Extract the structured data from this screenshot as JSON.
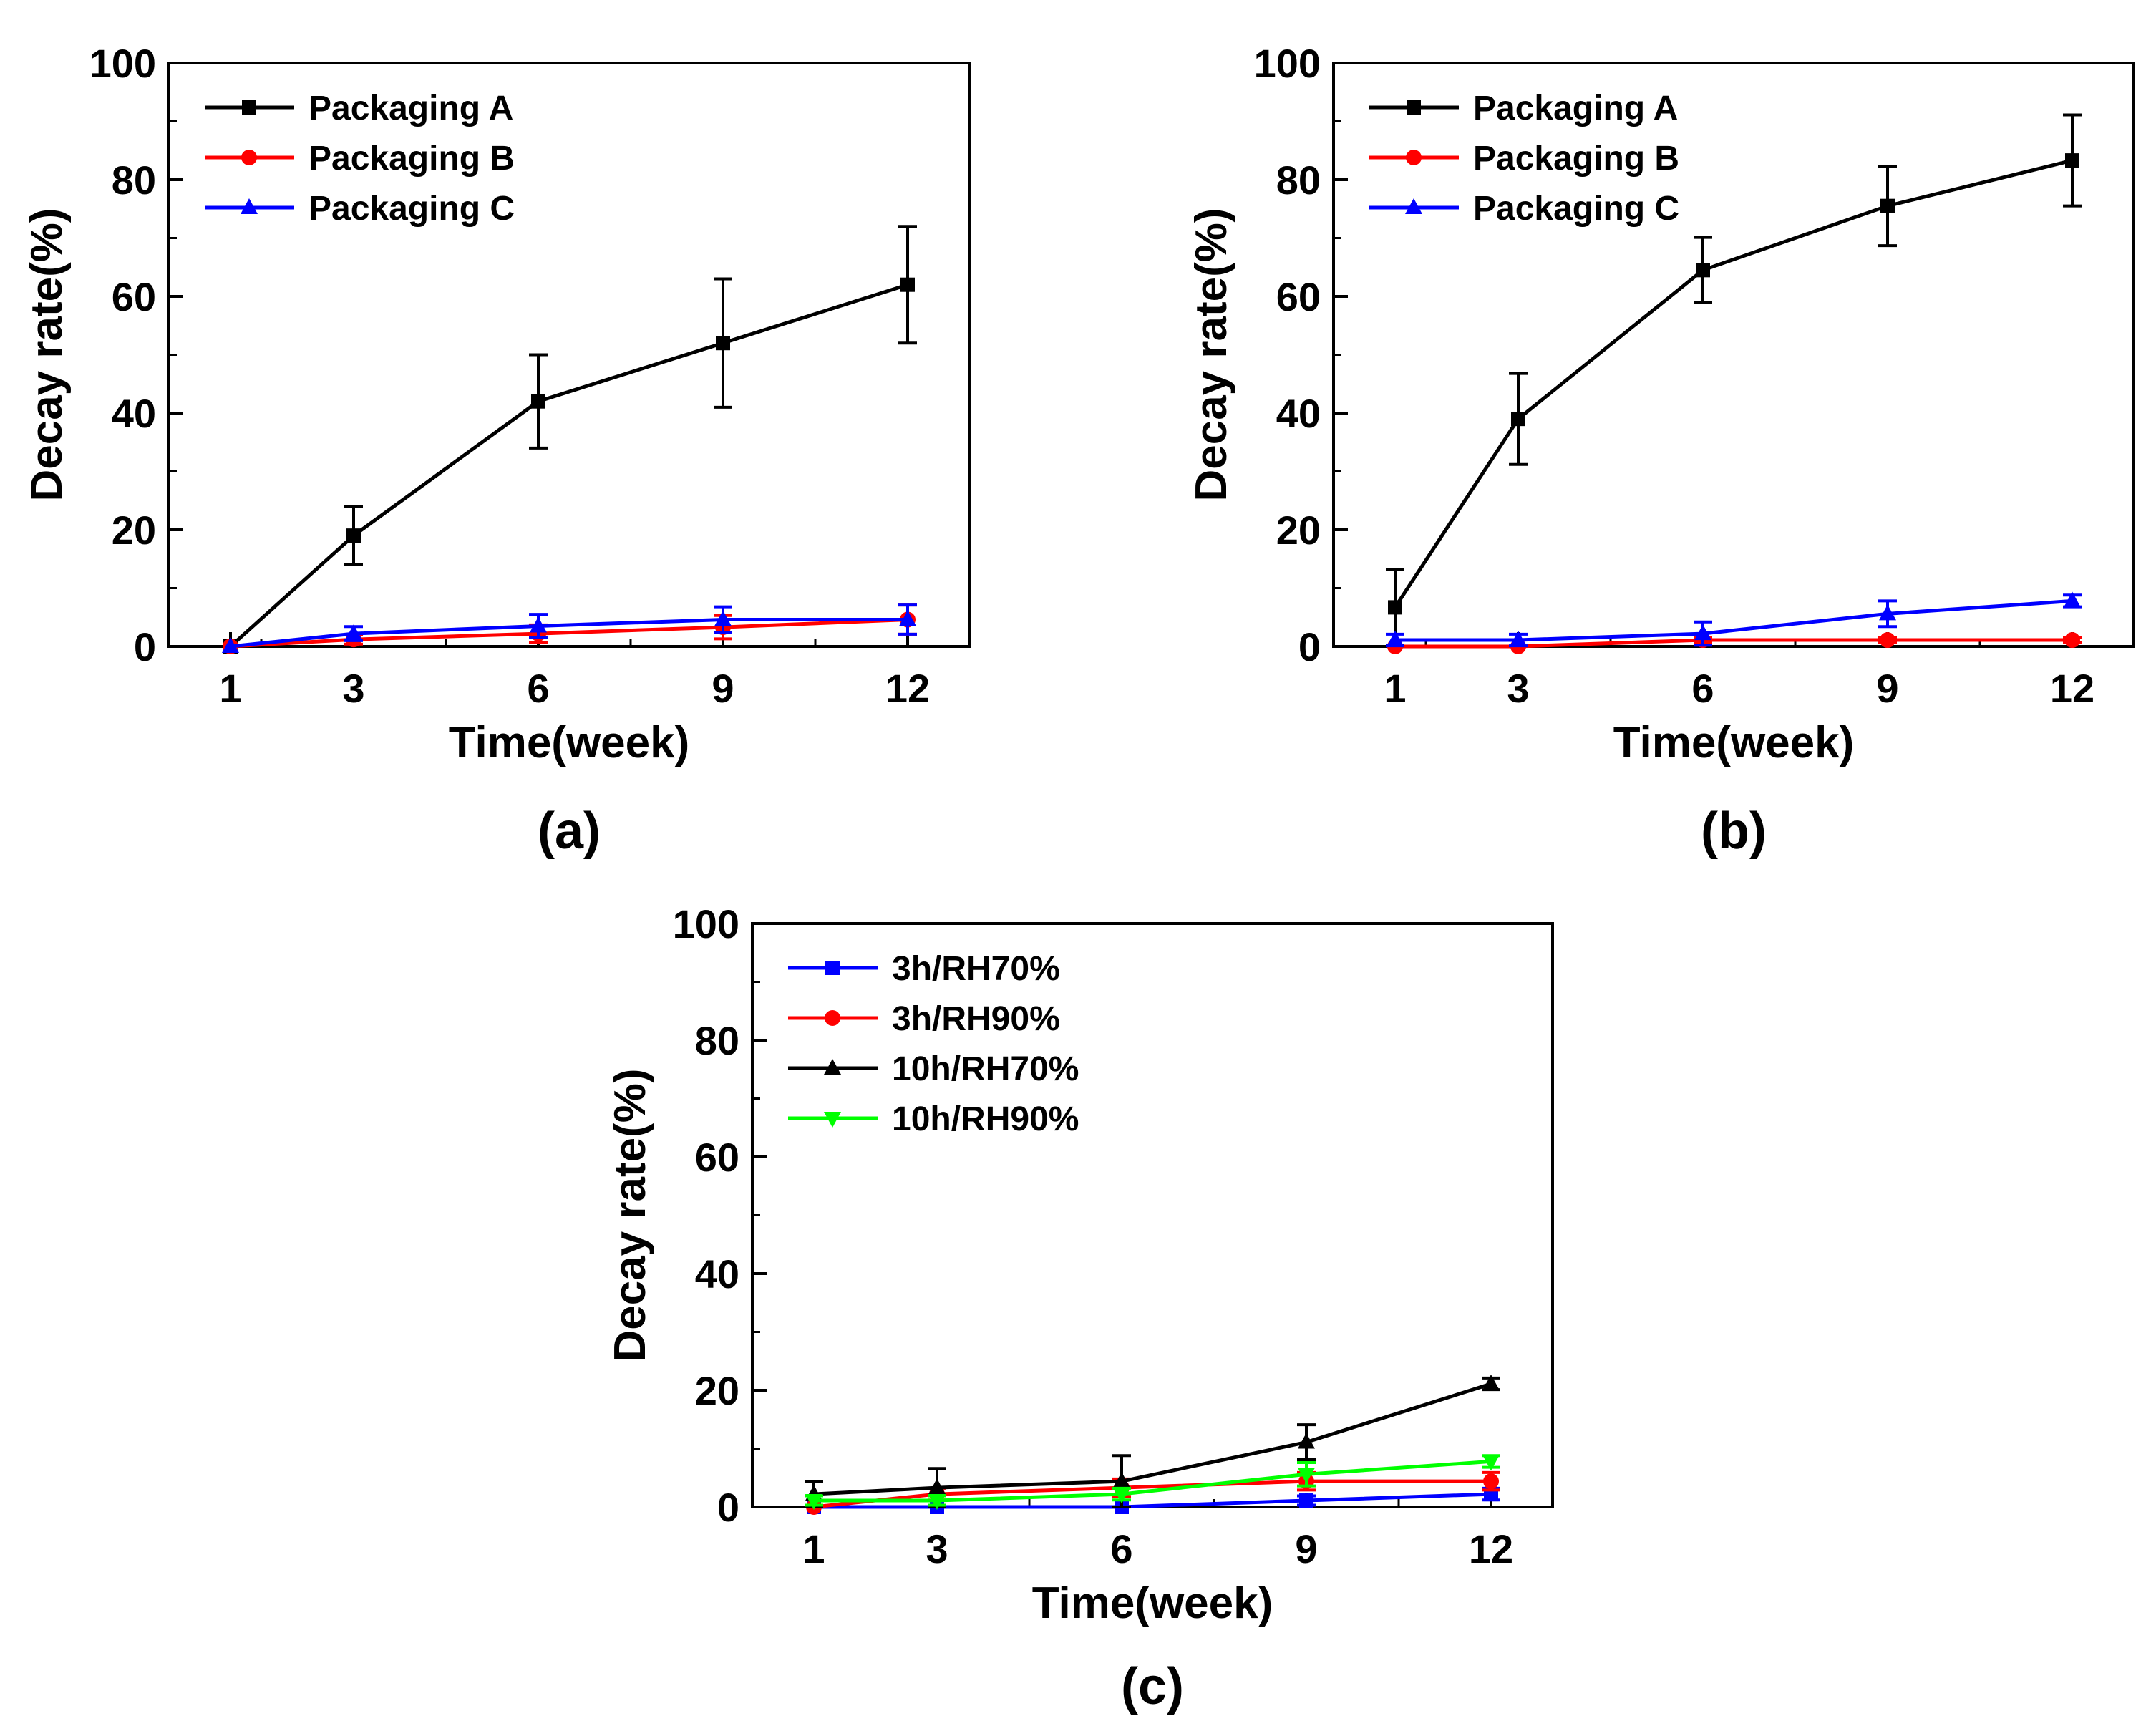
{
  "figure": {
    "colors": {
      "black": "#000000",
      "red": "#ff0000",
      "blue": "#0000ff",
      "green": "#00ff00"
    }
  },
  "chart_data": [
    {
      "id": "a",
      "type": "line",
      "panel_label": "(a)",
      "xlabel": "Time(week)",
      "ylabel": "Decay rate(%)",
      "xlim": [
        0,
        13
      ],
      "ylim": [
        0,
        100
      ],
      "x_ticks": [
        1,
        3,
        6,
        9,
        12
      ],
      "y_ticks": [
        0,
        20,
        40,
        60,
        80,
        100
      ],
      "legend_position": "top-left",
      "series": [
        {
          "name": "Packaging A",
          "color": "#000000",
          "marker": "square",
          "x": [
            1,
            3,
            6,
            9,
            12
          ],
          "values": [
            0,
            19,
            42,
            52,
            62
          ],
          "errors": [
            0,
            5,
            8,
            11,
            10
          ]
        },
        {
          "name": "Packaging B",
          "color": "#ff0000",
          "marker": "circle",
          "x": [
            1,
            3,
            6,
            9,
            12
          ],
          "values": [
            0,
            1.2,
            2.2,
            3.3,
            4.6
          ],
          "errors": [
            0,
            0.8,
            1.5,
            2,
            2.5
          ]
        },
        {
          "name": "Packaging C",
          "color": "#0000ff",
          "marker": "triangle-up",
          "x": [
            1,
            3,
            6,
            9,
            12
          ],
          "values": [
            0,
            2.2,
            3.5,
            4.6,
            4.6
          ],
          "errors": [
            0,
            1.2,
            2,
            2.2,
            2.5
          ]
        }
      ]
    },
    {
      "id": "b",
      "type": "line",
      "panel_label": "(b)",
      "xlabel": "Time(week)",
      "ylabel": "Decay rate(%)",
      "xlim": [
        0,
        13
      ],
      "ylim": [
        0,
        100
      ],
      "x_ticks": [
        1,
        3,
        6,
        9,
        12
      ],
      "y_ticks": [
        0,
        20,
        40,
        60,
        80,
        100
      ],
      "legend_position": "top-left",
      "series": [
        {
          "name": "Packaging A",
          "color": "#000000",
          "marker": "square",
          "x": [
            1,
            3,
            6,
            9,
            12
          ],
          "values": [
            6.7,
            39,
            64.5,
            75.5,
            83.3
          ],
          "errors": [
            6.5,
            7.8,
            5.6,
            6.8,
            7.8
          ]
        },
        {
          "name": "Packaging B",
          "color": "#ff0000",
          "marker": "circle",
          "x": [
            1,
            3,
            6,
            9,
            12
          ],
          "values": [
            0,
            0,
            1.1,
            1.1,
            1.1
          ],
          "errors": [
            0,
            0,
            0.4,
            0.4,
            0.4
          ]
        },
        {
          "name": "Packaging C",
          "color": "#0000ff",
          "marker": "triangle-up",
          "x": [
            1,
            3,
            6,
            9,
            12
          ],
          "values": [
            1.1,
            1.1,
            2.2,
            5.6,
            7.8
          ],
          "errors": [
            1,
            1,
            2,
            2.2,
            1
          ]
        }
      ]
    },
    {
      "id": "c",
      "type": "line",
      "panel_label": "(c)",
      "xlabel": "Time(week)",
      "ylabel": "Decay rate(%)",
      "xlim": [
        0,
        13
      ],
      "ylim": [
        0,
        100
      ],
      "x_ticks": [
        1,
        3,
        6,
        9,
        12
      ],
      "y_ticks": [
        0,
        20,
        40,
        60,
        80,
        100
      ],
      "legend_position": "top-left",
      "series": [
        {
          "name": "3h/RH70%",
          "color": "#0000ff",
          "marker": "square",
          "x": [
            1,
            3,
            6,
            9,
            12
          ],
          "values": [
            0,
            0,
            0,
            1.1,
            2.2
          ],
          "errors": [
            0,
            0,
            0,
            0.8,
            1
          ]
        },
        {
          "name": "3h/RH90%",
          "color": "#ff0000",
          "marker": "circle",
          "x": [
            1,
            3,
            6,
            9,
            12
          ],
          "values": [
            0,
            2.2,
            3.3,
            4.4,
            4.4
          ],
          "errors": [
            0,
            1,
            1.5,
            1.5,
            1.5
          ]
        },
        {
          "name": "10h/RH70%",
          "color": "#000000",
          "marker": "triangle-up",
          "x": [
            1,
            3,
            6,
            9,
            12
          ],
          "values": [
            2.2,
            3.3,
            4.4,
            11.1,
            21.1
          ],
          "errors": [
            2.2,
            3.3,
            4.4,
            3,
            1
          ]
        },
        {
          "name": "10h/RH90%",
          "color": "#00ff00",
          "marker": "triangle-down",
          "x": [
            1,
            3,
            6,
            9,
            12
          ],
          "values": [
            1.1,
            1.1,
            2.2,
            5.6,
            7.8
          ],
          "errors": [
            0.8,
            0.8,
            1,
            2,
            1
          ]
        }
      ]
    }
  ]
}
